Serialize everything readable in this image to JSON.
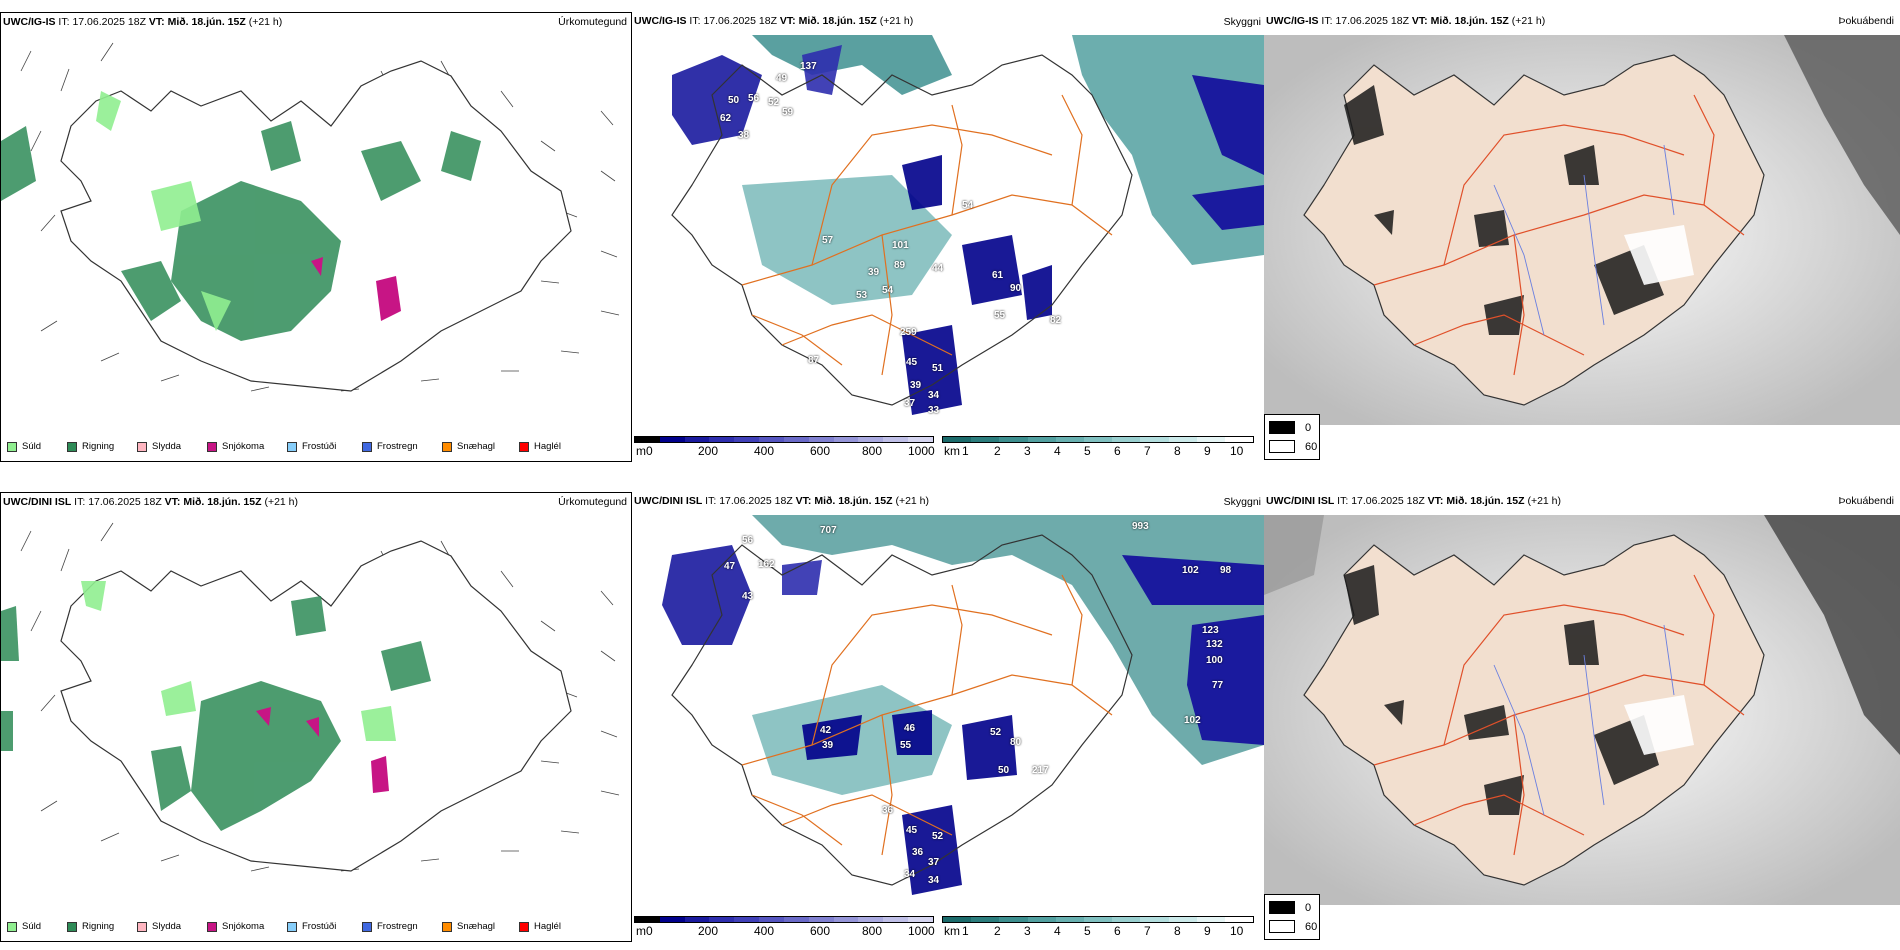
{
  "rows": [
    {
      "model": "UWC/IG-IS",
      "it_label": "IT:",
      "it_value": "17.06.2025 18Z",
      "vt_label": "VT:",
      "vt_value": "Mið. 18.jún. 15Z",
      "lead": "(+21 h)",
      "precip_labels": [
        "137",
        "49",
        "50",
        "56",
        "52",
        "62",
        "59",
        "38",
        "54",
        "57",
        "101",
        "44",
        "61",
        "90",
        "89",
        "53",
        "54",
        "39",
        "55",
        "82",
        "259",
        "45",
        "51",
        "39",
        "34",
        "37",
        "33",
        "87"
      ]
    },
    {
      "model": "UWC/DINI ISL",
      "it_label": "IT:",
      "it_value": "17.06.2025 18Z",
      "vt_label": "VT:",
      "vt_value": "Mið. 18.jún. 15Z",
      "lead": "(+21 h)",
      "precip_labels": [
        "707",
        "993",
        "56",
        "162",
        "47",
        "43",
        "102",
        "98",
        "123",
        "132",
        "100",
        "77",
        "102",
        "42",
        "39",
        "46",
        "52",
        "80",
        "55",
        "50",
        "217",
        "36",
        "45",
        "52",
        "36",
        "37",
        "34",
        "34"
      ]
    }
  ],
  "titles": {
    "precip_type": "Úrkomutegund",
    "visibility": "Skyggni",
    "fog": "Þokuábendi"
  },
  "precip_legend": [
    {
      "label": "Súld",
      "color": "#90ee90"
    },
    {
      "label": "Rigning",
      "color": "#2e8b57"
    },
    {
      "label": "Slydda",
      "color": "#ffb6c1"
    },
    {
      "label": "Snjókoma",
      "color": "#c71585"
    },
    {
      "label": "Frostúði",
      "color": "#87cefa"
    },
    {
      "label": "Frostregn",
      "color": "#4169e1"
    },
    {
      "label": "Snæhagl",
      "color": "#ff8c00"
    },
    {
      "label": "Haglél",
      "color": "#ff0000"
    }
  ],
  "cloud_base_bar": {
    "unit": "m",
    "ticks": [
      "0",
      "200",
      "400",
      "600",
      "800",
      "1000"
    ],
    "colors": [
      "#000000",
      "#00008b",
      "#1a1a9e",
      "#2e2eae",
      "#4040b8",
      "#5555c0",
      "#6a6ac8",
      "#8080d0",
      "#9595d8",
      "#aaaae0",
      "#c0c0e8",
      "#d5d5f0"
    ]
  },
  "visibility_bar": {
    "unit": "km",
    "ticks": [
      "1",
      "2",
      "3",
      "4",
      "5",
      "6",
      "7",
      "8",
      "9",
      "10"
    ],
    "colors": [
      "#1b6b6b",
      "#2b7d7d",
      "#3d8f8f",
      "#52a0a0",
      "#68b0b0",
      "#80c0c0",
      "#99cfcf",
      "#b3dede",
      "#cceaea",
      "#e6f5f5",
      "#ffffff"
    ]
  },
  "fog_legend": {
    "items": [
      {
        "label": "0",
        "color": "#000000"
      },
      {
        "label": "60",
        "color": "#ffffff"
      }
    ]
  }
}
